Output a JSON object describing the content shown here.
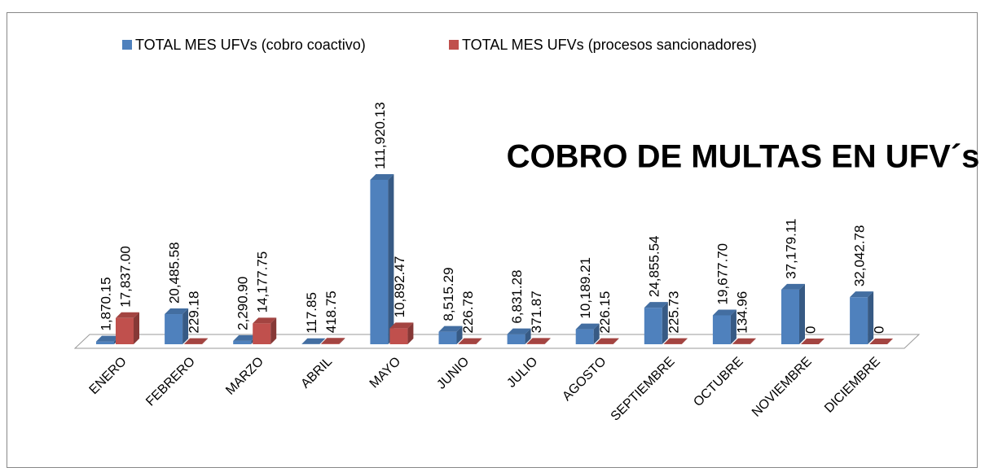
{
  "chart_data": {
    "type": "bar3d",
    "title": "COBRO DE MULTAS EN UFV´s",
    "categories": [
      "ENERO",
      "FEBRERO",
      "MARZO",
      "ABRIL",
      "MAYO",
      "JUNIO",
      "JULIO",
      "AGOSTO",
      "SEPTIEMBRE",
      "OCTUBRE",
      "NOVIEMBRE",
      "DICIEMBRE"
    ],
    "series": [
      {
        "name": "TOTAL MES UFVs (cobro coactivo)",
        "color": "#4f81bd",
        "values": [
          1870.15,
          20485.58,
          2290.9,
          117.85,
          111920.13,
          8515.29,
          6831.28,
          10189.21,
          24855.54,
          19677.7,
          37179.11,
          32042.78
        ],
        "value_labels": [
          "1,870.15",
          "20,485.58",
          "2,290.90",
          "117.85",
          "111,920.13",
          "8,515.29",
          "6,831.28",
          "10,189.21",
          "24,855.54",
          "19,677.70",
          "37,179.11",
          "32,042.78"
        ]
      },
      {
        "name": "TOTAL MES UFVs (procesos sancionadores)",
        "color": "#c0504d",
        "values": [
          17837.0,
          229.18,
          14177.75,
          418.75,
          10892.47,
          226.78,
          371.87,
          226.15,
          225.73,
          134.96,
          0,
          0
        ],
        "value_labels": [
          "17,837.00",
          "229.18",
          "14,177.75",
          "418.75",
          "10,892.47",
          "226.78",
          "371.87",
          "226.15",
          "225.73",
          "134.96",
          "0",
          "0"
        ]
      }
    ],
    "legend": "top"
  }
}
